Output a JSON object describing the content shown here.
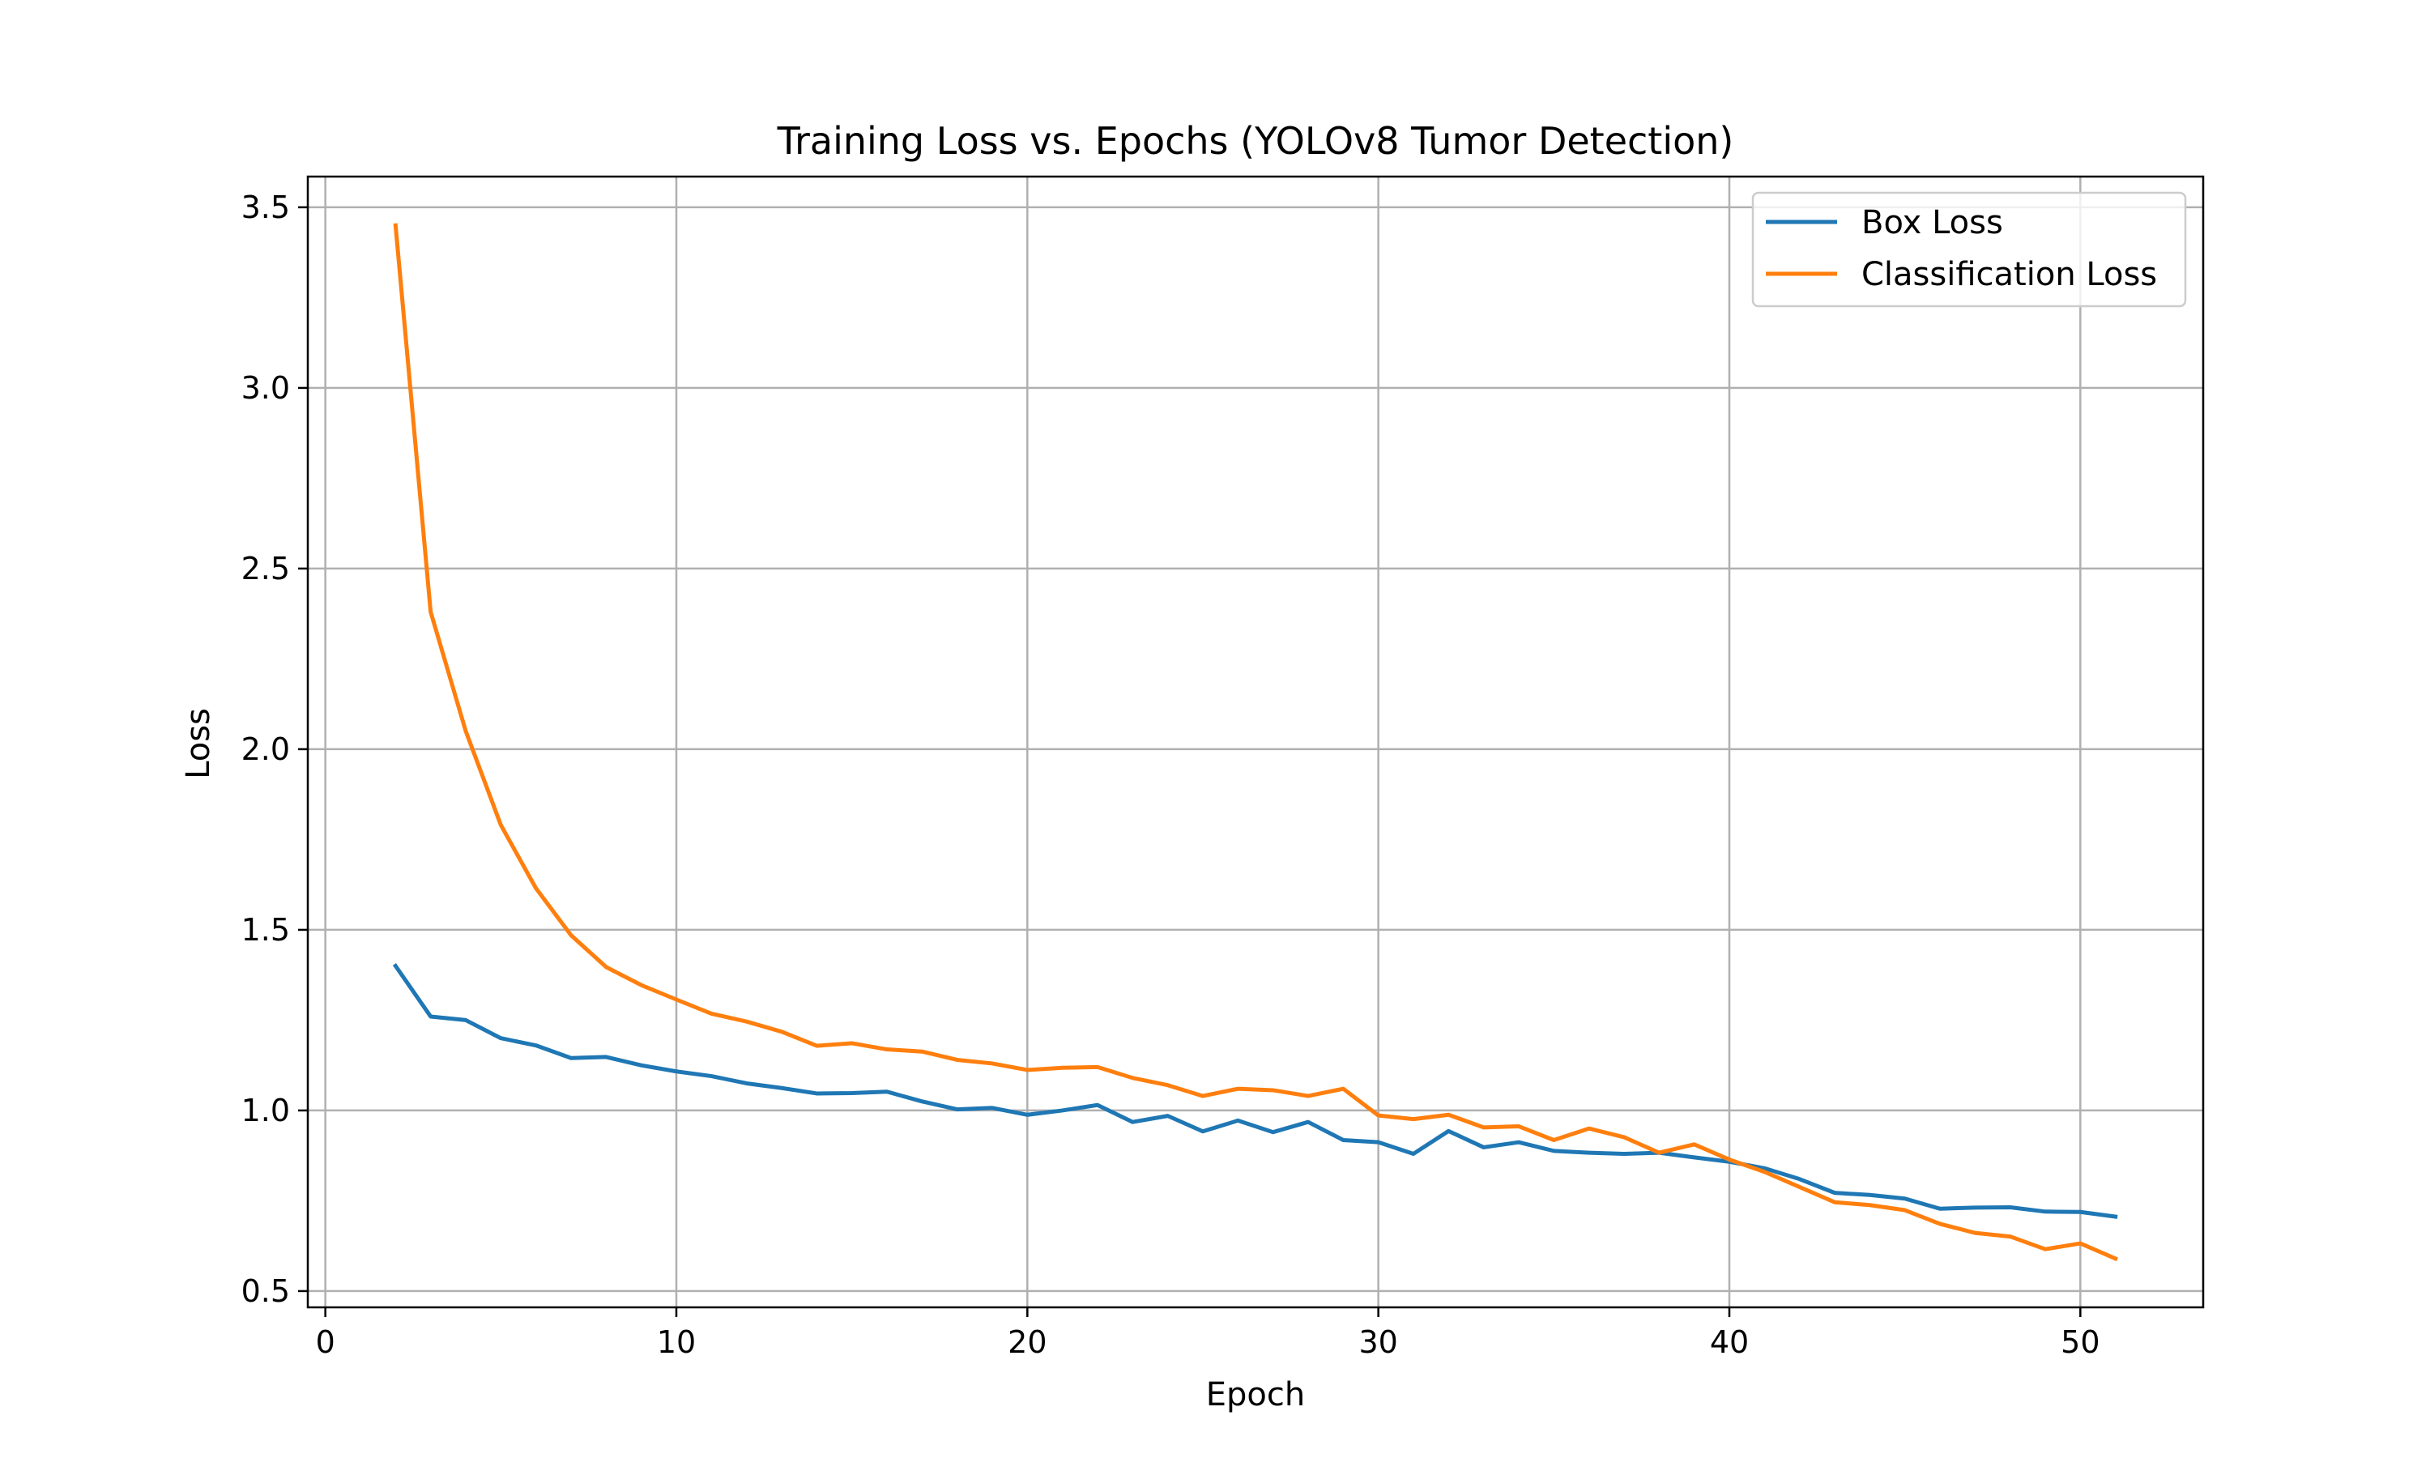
{
  "chart_data": {
    "type": "line",
    "title": "Training Loss vs. Epochs (YOLOv8 Tumor Detection)",
    "xlabel": "Epoch",
    "ylabel": "Loss",
    "xlim": [
      -0.5,
      53.5
    ],
    "ylim": [
      0.455,
      3.585
    ],
    "xticks": [
      0,
      10,
      20,
      30,
      40,
      50
    ],
    "yticks": [
      0.5,
      1.0,
      1.5,
      2.0,
      2.5,
      3.0,
      3.5
    ],
    "grid": true,
    "legend_position": "top-right",
    "x": [
      2,
      3,
      4,
      5,
      6,
      7,
      8,
      9,
      10,
      11,
      12,
      13,
      14,
      15,
      16,
      17,
      18,
      19,
      20,
      21,
      22,
      23,
      24,
      25,
      26,
      27,
      28,
      29,
      30,
      31,
      32,
      33,
      34,
      35,
      36,
      37,
      38,
      39,
      40,
      41,
      42,
      43,
      44,
      45,
      46,
      47,
      48,
      49,
      50,
      51
    ],
    "series": [
      {
        "name": "Box Loss",
        "color": "#1f77b4",
        "values": [
          1.4,
          1.26,
          1.25,
          1.2,
          1.18,
          1.145,
          1.148,
          1.125,
          1.108,
          1.095,
          1.075,
          1.062,
          1.047,
          1.048,
          1.052,
          1.025,
          1.003,
          1.007,
          0.988,
          1.0,
          1.015,
          0.968,
          0.985,
          0.942,
          0.972,
          0.94,
          0.968,
          0.918,
          0.912,
          0.88,
          0.943,
          0.898,
          0.912,
          0.888,
          0.883,
          0.88,
          0.883,
          0.87,
          0.858,
          0.84,
          0.81,
          0.772,
          0.766,
          0.756,
          0.728,
          0.731,
          0.732,
          0.72,
          0.719,
          0.706
        ]
      },
      {
        "name": "Classification Loss",
        "color": "#ff7f0e",
        "values": [
          3.45,
          2.38,
          2.05,
          1.79,
          1.615,
          1.485,
          1.397,
          1.347,
          1.307,
          1.268,
          1.246,
          1.218,
          1.179,
          1.186,
          1.169,
          1.163,
          1.14,
          1.13,
          1.112,
          1.118,
          1.12,
          1.09,
          1.07,
          1.04,
          1.06,
          1.056,
          1.04,
          1.06,
          0.986,
          0.976,
          0.988,
          0.953,
          0.956,
          0.918,
          0.95,
          0.926,
          0.883,
          0.906,
          0.864,
          0.83,
          0.788,
          0.746,
          0.738,
          0.724,
          0.686,
          0.661,
          0.651,
          0.616,
          0.632,
          0.59
        ]
      }
    ]
  }
}
